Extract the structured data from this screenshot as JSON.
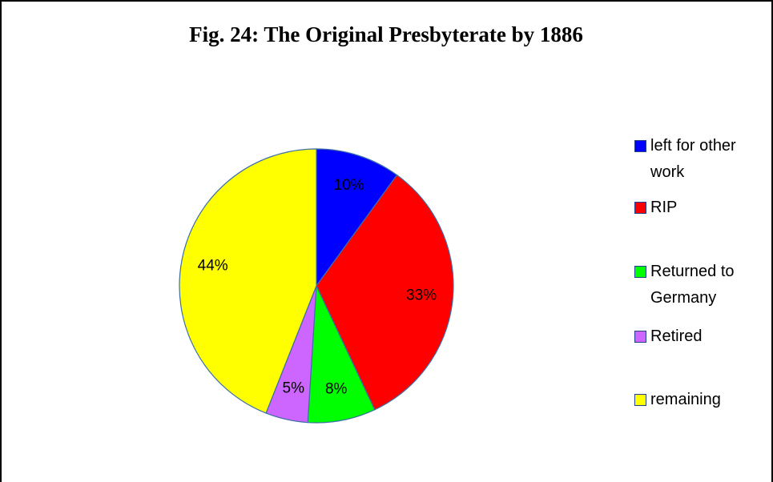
{
  "chart_data": {
    "type": "pie",
    "title": "Fig. 24: The Original Presbyterate by 1886",
    "categories": [
      "left for other work",
      "RIP",
      "Returned to Germany",
      "Retired",
      "remaining"
    ],
    "values": [
      10,
      33,
      8,
      5,
      44
    ],
    "value_labels": [
      "10%",
      "33%",
      "8%",
      "5%",
      "44%"
    ],
    "colors": [
      "#0000ff",
      "#ff0000",
      "#00ff00",
      "#cc66ff",
      "#ffff00"
    ],
    "legend": "right"
  }
}
